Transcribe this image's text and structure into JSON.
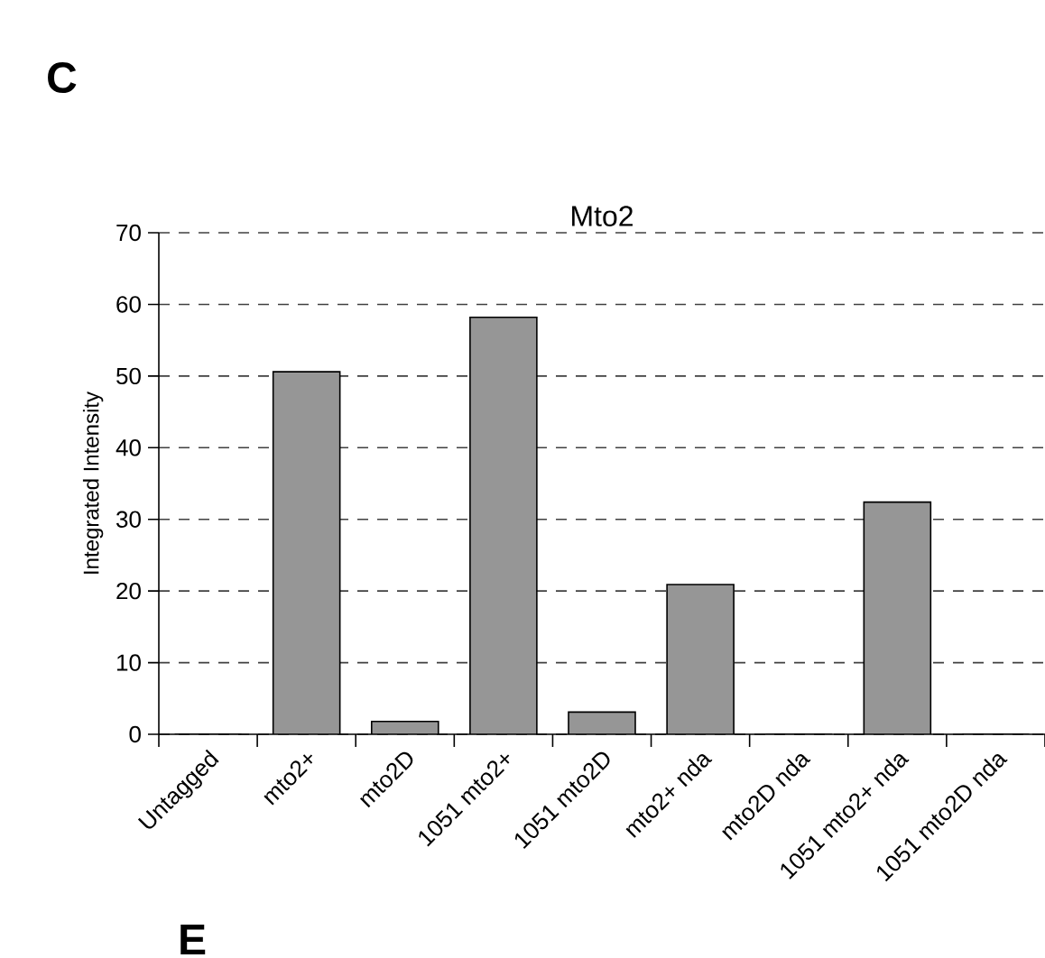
{
  "chart_data": {
    "type": "bar",
    "title": "Mto2",
    "ylabel": "Integrated Intensity",
    "categories": [
      "Untagged",
      "mto2+",
      "mto2D",
      "1051 mto2+",
      "1051 mto2D",
      "mto2+ nda",
      "mto2D nda",
      "1051 mto2+ nda",
      "1051 mto2D nda"
    ],
    "values": [
      0,
      50.6,
      1.8,
      58.2,
      3.1,
      20.9,
      0,
      32.4,
      0
    ],
    "color": "#969696",
    "ylim": [
      0,
      70
    ],
    "yticks": [
      0,
      10,
      20,
      30,
      40,
      50,
      60,
      70
    ],
    "grid": "y",
    "annotations": [
      "C",
      "E"
    ]
  }
}
